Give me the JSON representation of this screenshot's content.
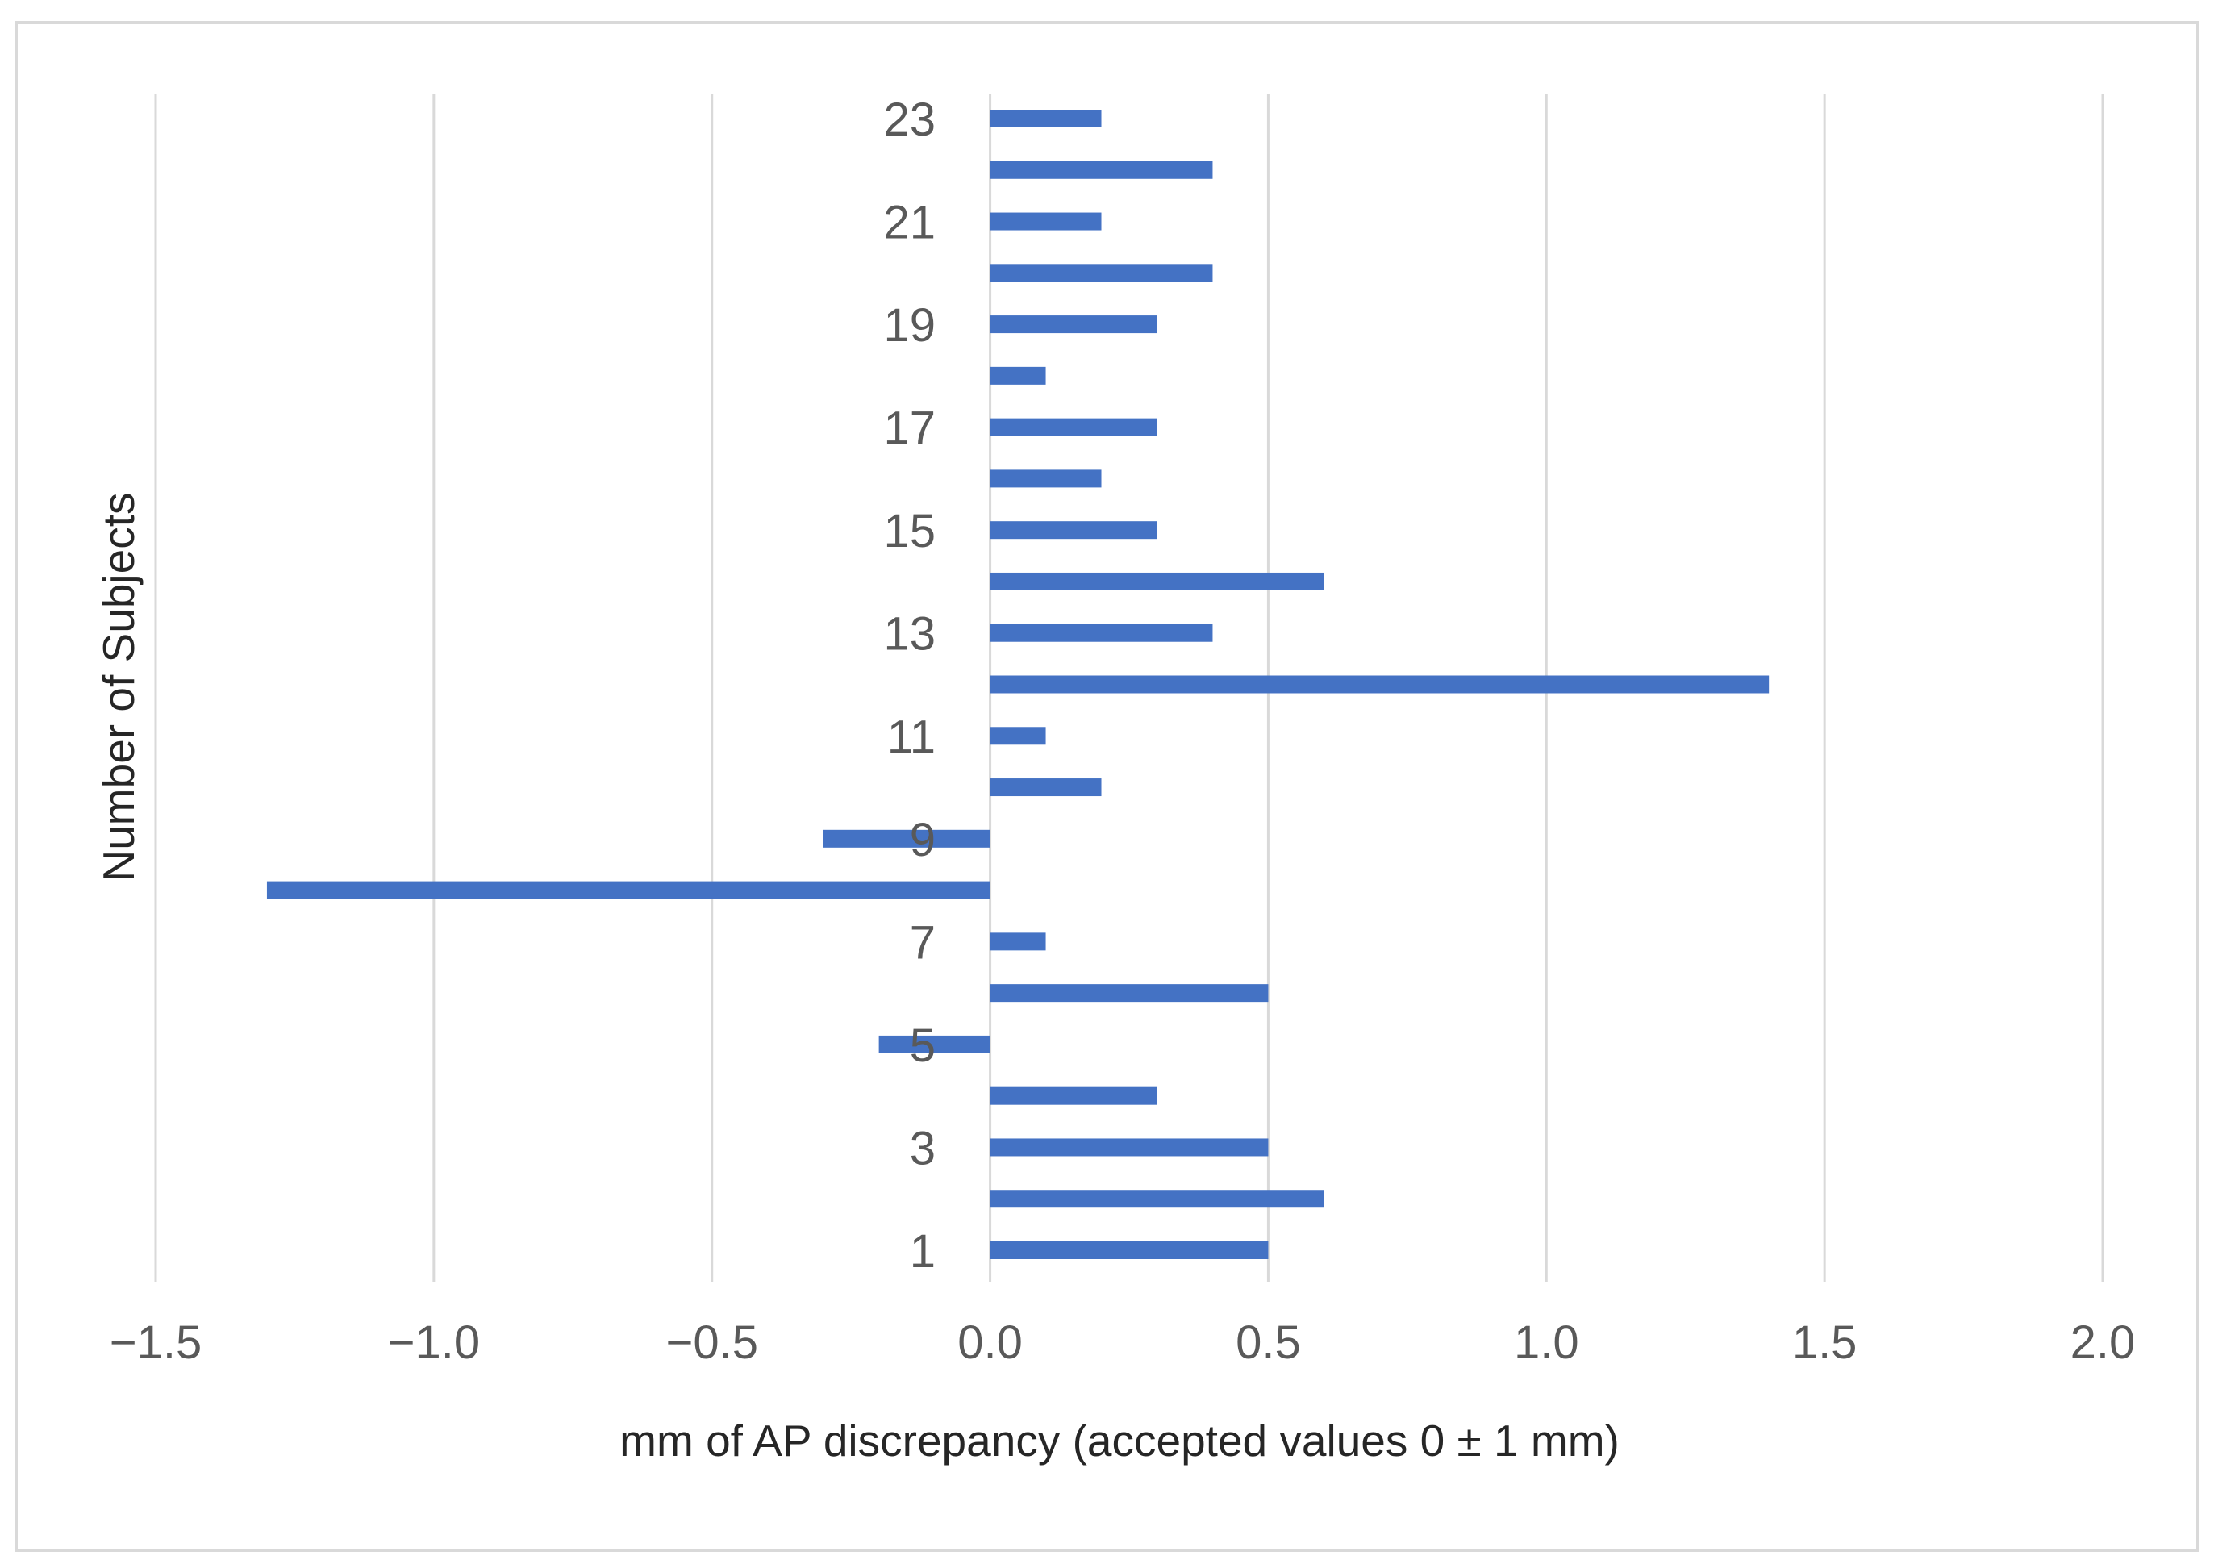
{
  "chart_data": {
    "type": "bar",
    "orientation": "horizontal",
    "title": "",
    "xlabel": "mm of AP discrepancy (accepted values 0 ± 1 mm)",
    "ylabel": "Number of Subjects",
    "xlim": [
      -1.5,
      2.0
    ],
    "x_ticks": [
      -1.5,
      -1.0,
      -0.5,
      0.0,
      0.5,
      1.0,
      1.5,
      2.0
    ],
    "x_tick_labels": [
      "−1.5",
      "−1.0",
      "−0.5",
      "0.0",
      "0.5",
      "1.0",
      "1.5",
      "2.0"
    ],
    "categories": [
      "1",
      "2",
      "3",
      "4",
      "5",
      "6",
      "7",
      "8",
      "9",
      "10",
      "11",
      "12",
      "13",
      "14",
      "15",
      "16",
      "17",
      "18",
      "19",
      "20",
      "21",
      "22",
      "23"
    ],
    "shown_category_labels": [
      "1",
      "3",
      "5",
      "7",
      "9",
      "11",
      "13",
      "15",
      "17",
      "19",
      "21",
      "23"
    ],
    "values": [
      0.5,
      0.6,
      0.5,
      0.3,
      -0.2,
      0.5,
      0.1,
      -1.3,
      -0.3,
      0.2,
      0.1,
      1.4,
      0.4,
      0.6,
      0.3,
      0.2,
      0.3,
      0.1,
      0.3,
      0.4,
      0.2,
      0.4,
      0.2
    ],
    "grid": true,
    "bar_color": "#4472c4"
  }
}
